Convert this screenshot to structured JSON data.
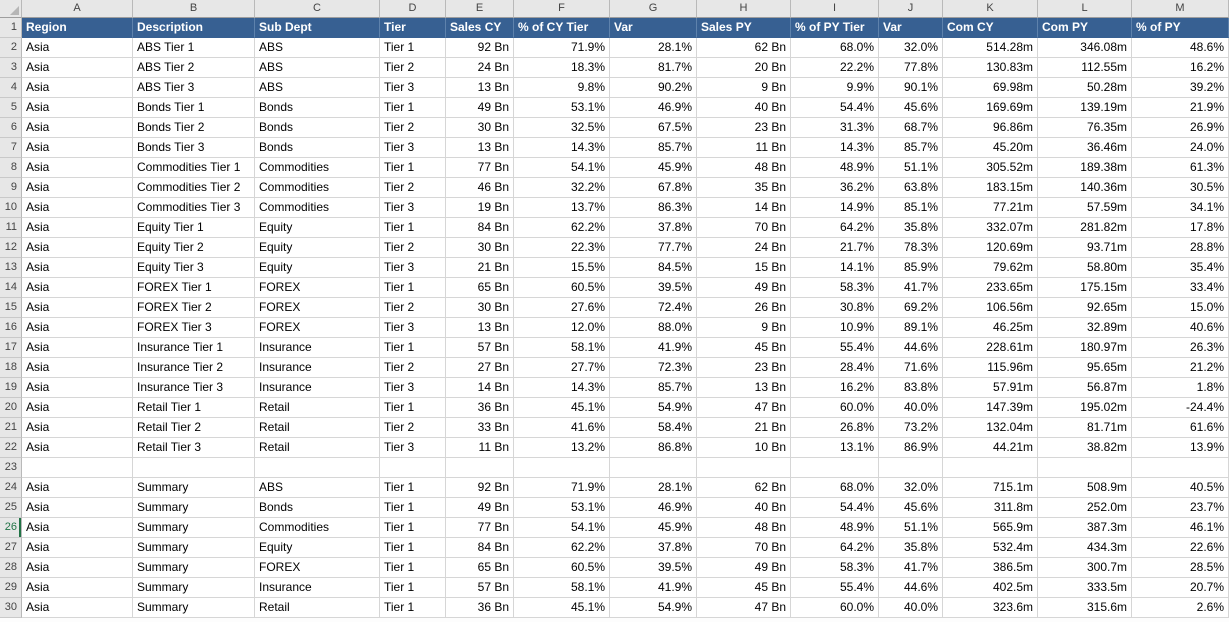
{
  "colors": {
    "header_fill": "#376092",
    "header_text": "#FFFFFF",
    "header_separator": "#5E82AC",
    "gridline": "#D6D6D6",
    "heading_bg": "#E7E7E7",
    "heading_text": "#444444",
    "heading_border": "#B9B9B9",
    "active_row_green": "#217346",
    "cell_text": "#000000"
  },
  "sheet": {
    "column_letters": [
      "A",
      "B",
      "C",
      "D",
      "E",
      "F",
      "G",
      "H",
      "I",
      "J",
      "K",
      "L",
      "M"
    ],
    "active_row": "26",
    "header": {
      "row_number": "1",
      "cells": [
        "Region",
        "Description",
        "Sub Dept",
        "Tier",
        "Sales CY",
        "% of CY Tier",
        "Var",
        "Sales PY",
        "% of PY Tier",
        "Var",
        "Com CY",
        "Com PY",
        "% of PY"
      ]
    },
    "rows": [
      {
        "n": "2",
        "cells": [
          "Asia",
          "ABS Tier 1",
          "ABS",
          "Tier 1",
          "92 Bn",
          "71.9%",
          "28.1%",
          "62 Bn",
          "68.0%",
          "32.0%",
          "514.28m",
          "346.08m",
          "48.6%"
        ]
      },
      {
        "n": "3",
        "cells": [
          "Asia",
          "ABS Tier 2",
          "ABS",
          "Tier 2",
          "24 Bn",
          "18.3%",
          "81.7%",
          "20 Bn",
          "22.2%",
          "77.8%",
          "130.83m",
          "112.55m",
          "16.2%"
        ]
      },
      {
        "n": "4",
        "cells": [
          "Asia",
          "ABS Tier 3",
          "ABS",
          "Tier 3",
          "13 Bn",
          "9.8%",
          "90.2%",
          "9 Bn",
          "9.9%",
          "90.1%",
          "69.98m",
          "50.28m",
          "39.2%"
        ]
      },
      {
        "n": "5",
        "cells": [
          "Asia",
          "Bonds Tier 1",
          "Bonds",
          "Tier 1",
          "49 Bn",
          "53.1%",
          "46.9%",
          "40 Bn",
          "54.4%",
          "45.6%",
          "169.69m",
          "139.19m",
          "21.9%"
        ]
      },
      {
        "n": "6",
        "cells": [
          "Asia",
          "Bonds Tier 2",
          "Bonds",
          "Tier 2",
          "30 Bn",
          "32.5%",
          "67.5%",
          "23 Bn",
          "31.3%",
          "68.7%",
          "96.86m",
          "76.35m",
          "26.9%"
        ]
      },
      {
        "n": "7",
        "cells": [
          "Asia",
          "Bonds Tier 3",
          "Bonds",
          "Tier 3",
          "13 Bn",
          "14.3%",
          "85.7%",
          "11 Bn",
          "14.3%",
          "85.7%",
          "45.20m",
          "36.46m",
          "24.0%"
        ]
      },
      {
        "n": "8",
        "cells": [
          "Asia",
          "Commodities Tier 1",
          "Commodities",
          "Tier 1",
          "77 Bn",
          "54.1%",
          "45.9%",
          "48 Bn",
          "48.9%",
          "51.1%",
          "305.52m",
          "189.38m",
          "61.3%"
        ]
      },
      {
        "n": "9",
        "cells": [
          "Asia",
          "Commodities Tier 2",
          "Commodities",
          "Tier 2",
          "46 Bn",
          "32.2%",
          "67.8%",
          "35 Bn",
          "36.2%",
          "63.8%",
          "183.15m",
          "140.36m",
          "30.5%"
        ]
      },
      {
        "n": "10",
        "cells": [
          "Asia",
          "Commodities Tier 3",
          "Commodities",
          "Tier 3",
          "19 Bn",
          "13.7%",
          "86.3%",
          "14 Bn",
          "14.9%",
          "85.1%",
          "77.21m",
          "57.59m",
          "34.1%"
        ]
      },
      {
        "n": "11",
        "cells": [
          "Asia",
          "Equity Tier 1",
          "Equity",
          "Tier 1",
          "84 Bn",
          "62.2%",
          "37.8%",
          "70 Bn",
          "64.2%",
          "35.8%",
          "332.07m",
          "281.82m",
          "17.8%"
        ]
      },
      {
        "n": "12",
        "cells": [
          "Asia",
          "Equity Tier 2",
          "Equity",
          "Tier 2",
          "30 Bn",
          "22.3%",
          "77.7%",
          "24 Bn",
          "21.7%",
          "78.3%",
          "120.69m",
          "93.71m",
          "28.8%"
        ]
      },
      {
        "n": "13",
        "cells": [
          "Asia",
          "Equity Tier 3",
          "Equity",
          "Tier 3",
          "21 Bn",
          "15.5%",
          "84.5%",
          "15 Bn",
          "14.1%",
          "85.9%",
          "79.62m",
          "58.80m",
          "35.4%"
        ]
      },
      {
        "n": "14",
        "cells": [
          "Asia",
          "FOREX Tier 1",
          "FOREX",
          "Tier 1",
          "65 Bn",
          "60.5%",
          "39.5%",
          "49 Bn",
          "58.3%",
          "41.7%",
          "233.65m",
          "175.15m",
          "33.4%"
        ]
      },
      {
        "n": "15",
        "cells": [
          "Asia",
          "FOREX Tier 2",
          "FOREX",
          "Tier 2",
          "30 Bn",
          "27.6%",
          "72.4%",
          "26 Bn",
          "30.8%",
          "69.2%",
          "106.56m",
          "92.65m",
          "15.0%"
        ]
      },
      {
        "n": "16",
        "cells": [
          "Asia",
          "FOREX Tier 3",
          "FOREX",
          "Tier 3",
          "13 Bn",
          "12.0%",
          "88.0%",
          "9 Bn",
          "10.9%",
          "89.1%",
          "46.25m",
          "32.89m",
          "40.6%"
        ]
      },
      {
        "n": "17",
        "cells": [
          "Asia",
          "Insurance Tier 1",
          "Insurance",
          "Tier 1",
          "57 Bn",
          "58.1%",
          "41.9%",
          "45 Bn",
          "55.4%",
          "44.6%",
          "228.61m",
          "180.97m",
          "26.3%"
        ]
      },
      {
        "n": "18",
        "cells": [
          "Asia",
          "Insurance Tier 2",
          "Insurance",
          "Tier 2",
          "27 Bn",
          "27.7%",
          "72.3%",
          "23 Bn",
          "28.4%",
          "71.6%",
          "115.96m",
          "95.65m",
          "21.2%"
        ]
      },
      {
        "n": "19",
        "cells": [
          "Asia",
          "Insurance Tier 3",
          "Insurance",
          "Tier 3",
          "14 Bn",
          "14.3%",
          "85.7%",
          "13 Bn",
          "16.2%",
          "83.8%",
          "57.91m",
          "56.87m",
          "1.8%"
        ]
      },
      {
        "n": "20",
        "cells": [
          "Asia",
          "Retail Tier 1",
          "Retail",
          "Tier 1",
          "36 Bn",
          "45.1%",
          "54.9%",
          "47 Bn",
          "60.0%",
          "40.0%",
          "147.39m",
          "195.02m",
          "-24.4%"
        ]
      },
      {
        "n": "21",
        "cells": [
          "Asia",
          "Retail Tier 2",
          "Retail",
          "Tier 2",
          "33 Bn",
          "41.6%",
          "58.4%",
          "21 Bn",
          "26.8%",
          "73.2%",
          "132.04m",
          "81.71m",
          "61.6%"
        ]
      },
      {
        "n": "22",
        "cells": [
          "Asia",
          "Retail Tier 3",
          "Retail",
          "Tier 3",
          "11 Bn",
          "13.2%",
          "86.8%",
          "10 Bn",
          "13.1%",
          "86.9%",
          "44.21m",
          "38.82m",
          "13.9%"
        ]
      },
      {
        "n": "23",
        "cells": [
          "",
          "",
          "",
          "",
          "",
          "",
          "",
          "",
          "",
          "",
          "",
          "",
          ""
        ]
      },
      {
        "n": "24",
        "cells": [
          "Asia",
          "Summary",
          "ABS",
          "Tier 1",
          "92 Bn",
          "71.9%",
          "28.1%",
          "62 Bn",
          "68.0%",
          "32.0%",
          "715.1m",
          "508.9m",
          "40.5%"
        ]
      },
      {
        "n": "25",
        "cells": [
          "Asia",
          "Summary",
          "Bonds",
          "Tier 1",
          "49 Bn",
          "53.1%",
          "46.9%",
          "40 Bn",
          "54.4%",
          "45.6%",
          "311.8m",
          "252.0m",
          "23.7%"
        ]
      },
      {
        "n": "26",
        "cells": [
          "Asia",
          "Summary",
          "Commodities",
          "Tier 1",
          "77 Bn",
          "54.1%",
          "45.9%",
          "48 Bn",
          "48.9%",
          "51.1%",
          "565.9m",
          "387.3m",
          "46.1%"
        ]
      },
      {
        "n": "27",
        "cells": [
          "Asia",
          "Summary",
          "Equity",
          "Tier 1",
          "84 Bn",
          "62.2%",
          "37.8%",
          "70 Bn",
          "64.2%",
          "35.8%",
          "532.4m",
          "434.3m",
          "22.6%"
        ]
      },
      {
        "n": "28",
        "cells": [
          "Asia",
          "Summary",
          "FOREX",
          "Tier 1",
          "65 Bn",
          "60.5%",
          "39.5%",
          "49 Bn",
          "58.3%",
          "41.7%",
          "386.5m",
          "300.7m",
          "28.5%"
        ]
      },
      {
        "n": "29",
        "cells": [
          "Asia",
          "Summary",
          "Insurance",
          "Tier 1",
          "57 Bn",
          "58.1%",
          "41.9%",
          "45 Bn",
          "55.4%",
          "44.6%",
          "402.5m",
          "333.5m",
          "20.7%"
        ]
      },
      {
        "n": "30",
        "cells": [
          "Asia",
          "Summary",
          "Retail",
          "Tier 1",
          "36 Bn",
          "45.1%",
          "54.9%",
          "47 Bn",
          "60.0%",
          "40.0%",
          "323.6m",
          "315.6m",
          "2.6%"
        ]
      }
    ]
  }
}
